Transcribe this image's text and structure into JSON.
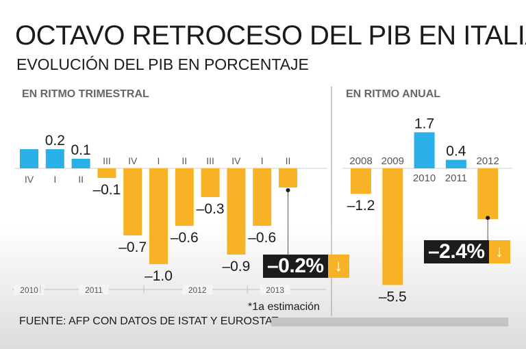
{
  "title": "OCTAVO RETROCESO DEL PIB EN ITALIA",
  "subtitle": "EVOLUCIÓN DEL PIB EN PORCENTAJE",
  "colors": {
    "positive": "#2ab0e8",
    "negative": "#f7b325",
    "dark": "#1c1c1c"
  },
  "chart_data": [
    {
      "type": "bar",
      "title": "EN RITMO TRIMESTRAL",
      "categories": [
        "IV",
        "I",
        "II",
        "III",
        "IV",
        "I",
        "II",
        "III",
        "IV",
        "I",
        "II"
      ],
      "values": [
        0.2,
        0.2,
        0.1,
        -0.1,
        -0.7,
        -1.0,
        -0.6,
        -0.3,
        -0.9,
        -0.6,
        -0.2
      ],
      "value_labels": [
        "",
        "0.2",
        "0.1",
        "-0.1",
        "-0.7",
        "-1.0",
        "-0.6",
        "-0.3",
        "-0.9",
        "-0.6",
        ""
      ],
      "year_groups": [
        {
          "label": "2010",
          "categories": [
            "IV"
          ]
        },
        {
          "label": "2011",
          "categories": [
            "I",
            "II",
            "III",
            "IV"
          ]
        },
        {
          "label": "2012",
          "categories": [
            "I",
            "II",
            "III",
            "IV"
          ]
        },
        {
          "label": "2013",
          "categories": [
            "I",
            "II"
          ]
        }
      ],
      "highlight": {
        "index": 10,
        "label": "-0.2%",
        "arrow": "down"
      },
      "note": "*1a estimación"
    },
    {
      "type": "bar",
      "title": "EN RITMO ANUAL",
      "categories": [
        "2008",
        "2009",
        "2010",
        "2011",
        "2012"
      ],
      "values": [
        -1.2,
        -5.5,
        1.7,
        0.4,
        -2.4
      ],
      "value_labels": [
        "-1.2",
        "-5.5",
        "1.7",
        "0.4",
        ""
      ],
      "highlight": {
        "index": 4,
        "label": "-2.4%",
        "arrow": "down"
      }
    }
  ],
  "source": "FUENTE: AFP CON DATOS DE ISTAT Y EUROSTAT."
}
